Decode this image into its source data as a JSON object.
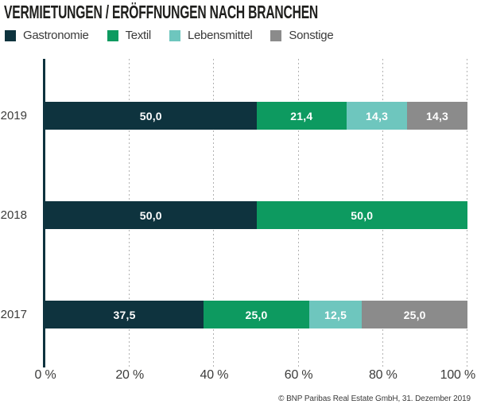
{
  "source": "© BNP Paribas Real Estate GmbH, 31. Dezember 2019",
  "chart_data": {
    "type": "bar",
    "orientation": "horizontal",
    "stacked": true,
    "title": "VERMIETUNGEN / ERÖFFNUNGEN NACH BRANCHEN",
    "xlabel": "",
    "ylabel": "",
    "categories": [
      "2019",
      "2018",
      "2017"
    ],
    "series": [
      {
        "name": "Gastronomie",
        "color": "#0e333e",
        "values": [
          50.0,
          50.0,
          37.5
        ],
        "labels": [
          "50,0",
          "50,0",
          "37,5"
        ]
      },
      {
        "name": "Textil",
        "color": "#0d9a60",
        "values": [
          21.4,
          50.0,
          25.0
        ],
        "labels": [
          "21,4",
          "50,0",
          "25,0"
        ]
      },
      {
        "name": "Lebensmittel",
        "color": "#6ec6be",
        "values": [
          14.3,
          0,
          12.5
        ],
        "labels": [
          "14,3",
          "",
          "12,5"
        ]
      },
      {
        "name": "Sonstige",
        "color": "#8b8b8b",
        "values": [
          14.3,
          0,
          25.0
        ],
        "labels": [
          "14,3",
          "",
          "25,0"
        ]
      }
    ],
    "x_ticks": [
      "0 %",
      "20 %",
      "40 %",
      "60 %",
      "80 %",
      "100 %"
    ],
    "xlim": [
      0,
      100
    ],
    "grid": "dotted-vertical",
    "legend_position": "top",
    "value_label_color": "#ffffff"
  }
}
